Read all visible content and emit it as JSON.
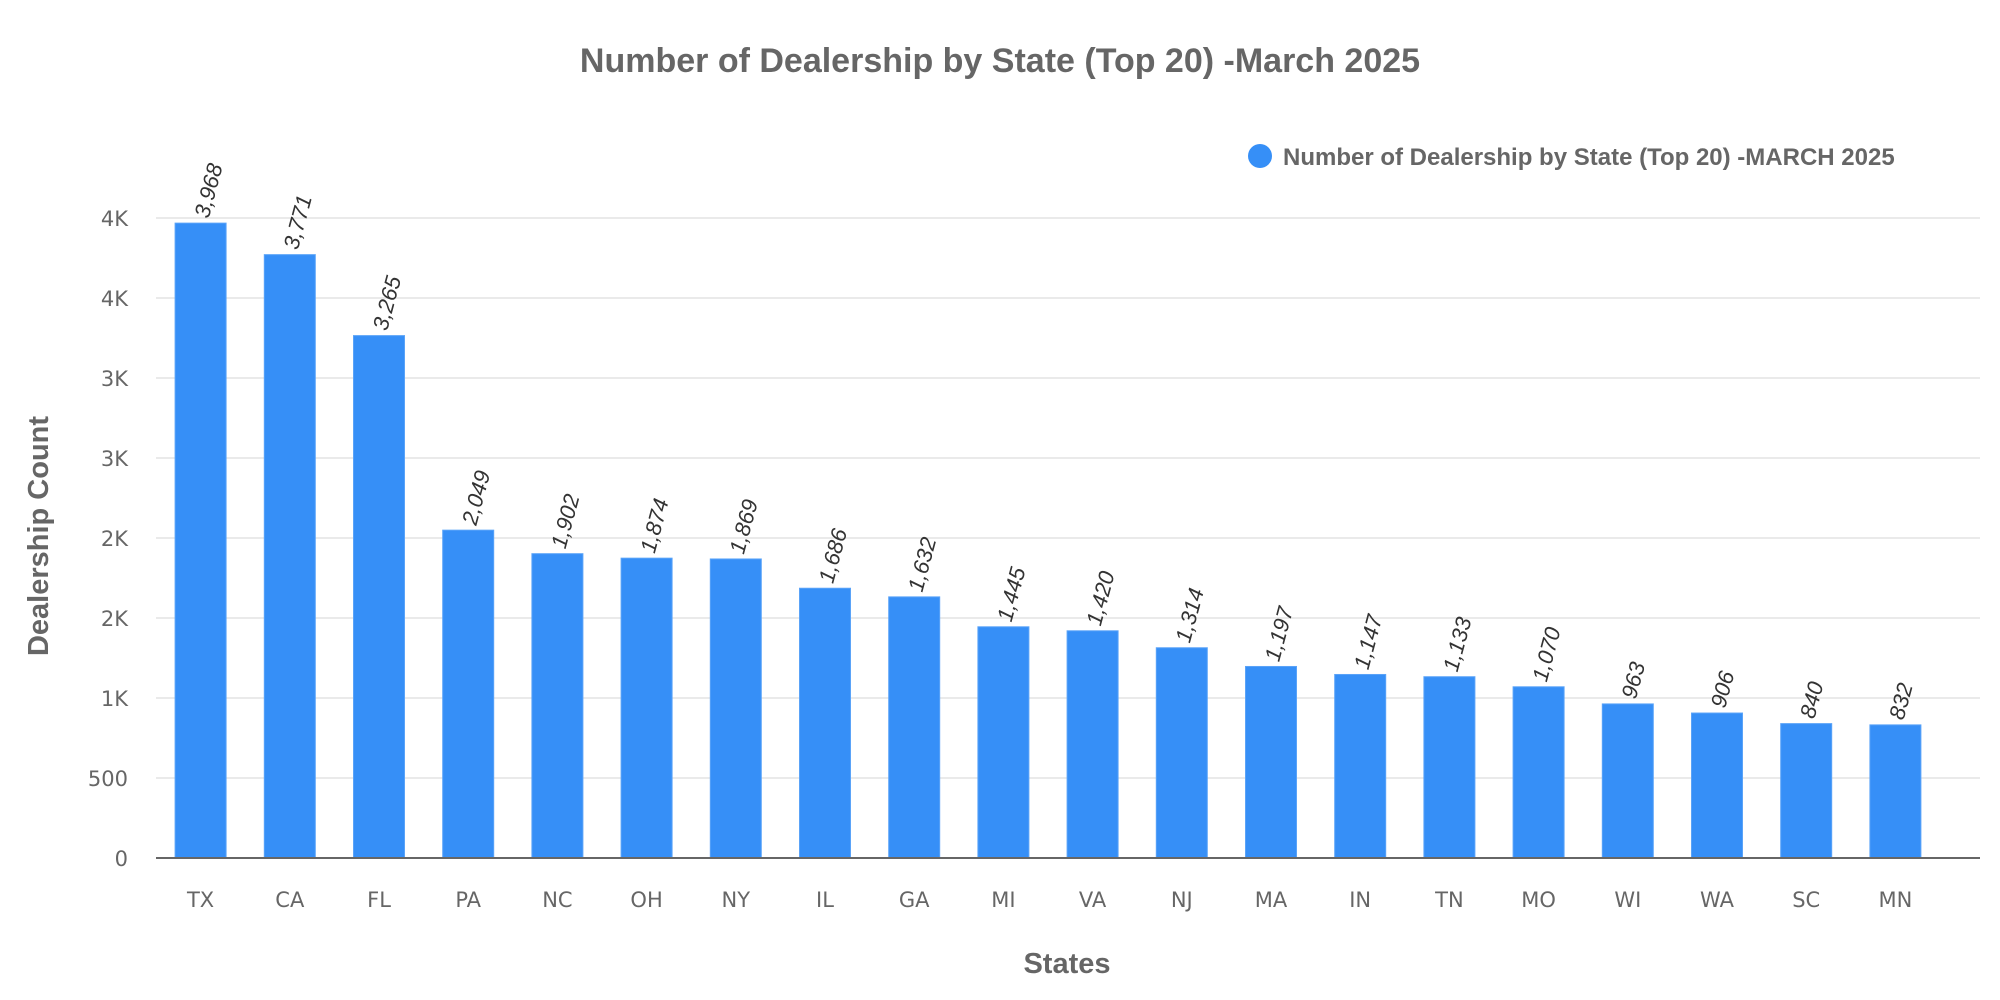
{
  "chart_data": {
    "type": "bar",
    "title": "Number of Dealership by State (Top 20) -March 2025",
    "xlabel": "States",
    "ylabel": "Dealership Count",
    "categories": [
      "TX",
      "CA",
      "FL",
      "PA",
      "NC",
      "OH",
      "NY",
      "IL",
      "GA",
      "MI",
      "VA",
      "NJ",
      "MA",
      "IN",
      "TN",
      "MO",
      "WI",
      "WA",
      "SC",
      "MN"
    ],
    "series": [
      {
        "name": "Number of Dealership by State (Top 20) -MARCH 2025",
        "color": "#368FF7",
        "values": [
          3968,
          3771,
          3265,
          2049,
          1902,
          1874,
          1869,
          1686,
          1632,
          1445,
          1420,
          1314,
          1197,
          1147,
          1133,
          1070,
          963,
          906,
          840,
          832
        ],
        "value_labels": [
          "3,968",
          "3,771",
          "3,265",
          "2,049",
          "1,902",
          "1,874",
          "1,869",
          "1,686",
          "1,632",
          "1,445",
          "1,420",
          "1,314",
          "1,197",
          "1,147",
          "1,133",
          "1,070",
          "963",
          "906",
          "840",
          "832"
        ]
      }
    ],
    "yticks": [
      0,
      500,
      1000,
      1500,
      2000,
      2500,
      3000,
      3500,
      4000
    ],
    "ytick_labels": [
      "0",
      "500",
      "1K",
      "2K",
      "2K",
      "3K",
      "3K",
      "4K",
      "4K"
    ],
    "ylim": [
      0,
      4000
    ],
    "grid": true,
    "legend_position": "top-right"
  }
}
